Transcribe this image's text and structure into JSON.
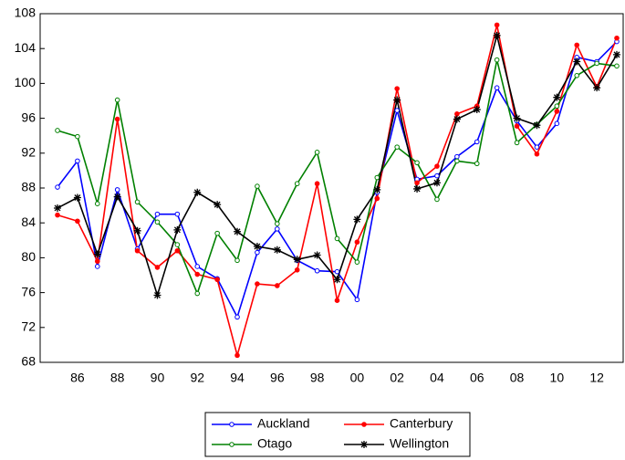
{
  "chart_data": {
    "type": "line",
    "categories": [
      null,
      "86",
      null,
      "88",
      null,
      "90",
      null,
      "92",
      null,
      "94",
      null,
      "96",
      null,
      "98",
      null,
      "00",
      null,
      "02",
      null,
      "04",
      null,
      "06",
      null,
      "08",
      null,
      "10",
      null,
      "12",
      null
    ],
    "ylim": [
      68,
      108
    ],
    "yticks": [
      68,
      72,
      76,
      80,
      84,
      88,
      92,
      96,
      100,
      104,
      108
    ],
    "legend": "bottom",
    "series": [
      {
        "name": "Auckland",
        "color": "#0000ff",
        "marker": "circle-open",
        "values": [
          88.1,
          91.1,
          79.0,
          87.8,
          81.0,
          85.0,
          85.0,
          79.0,
          77.6,
          73.2,
          80.6,
          83.3,
          79.7,
          78.5,
          78.4,
          75.2,
          87.5,
          96.9,
          89.0,
          89.4,
          91.6,
          93.3,
          99.5,
          95.7,
          92.7,
          95.4,
          103.0,
          102.5,
          104.8
        ]
      },
      {
        "name": "Canterbury",
        "color": "#ff0000",
        "marker": "circle-filled",
        "values": [
          84.9,
          84.2,
          79.6,
          95.9,
          80.8,
          78.9,
          80.8,
          78.1,
          77.5,
          68.8,
          77.0,
          76.8,
          78.6,
          88.5,
          75.1,
          81.8,
          86.8,
          99.4,
          88.6,
          90.5,
          96.5,
          97.4,
          106.7,
          95.1,
          91.9,
          96.8,
          104.4,
          99.6,
          105.2
        ]
      },
      {
        "name": "Otago",
        "color": "#008000",
        "marker": "circle-open",
        "values": [
          94.6,
          93.9,
          86.2,
          98.1,
          86.4,
          84.1,
          81.5,
          75.9,
          82.8,
          79.7,
          88.2,
          83.9,
          88.5,
          92.1,
          82.2,
          79.5,
          89.2,
          92.7,
          90.9,
          86.7,
          91.1,
          90.8,
          102.7,
          93.2,
          95.3,
          97.4,
          100.9,
          102.3,
          102.0
        ]
      },
      {
        "name": "Wellington",
        "color": "#000000",
        "marker": "star",
        "values": [
          85.7,
          86.9,
          80.4,
          87.0,
          83.1,
          75.7,
          83.2,
          87.5,
          86.1,
          83.0,
          81.3,
          80.9,
          79.8,
          80.3,
          77.5,
          84.4,
          87.8,
          98.1,
          87.9,
          88.6,
          95.9,
          97.0,
          105.5,
          96.0,
          95.2,
          98.4,
          102.5,
          99.5,
          103.3
        ]
      }
    ]
  }
}
